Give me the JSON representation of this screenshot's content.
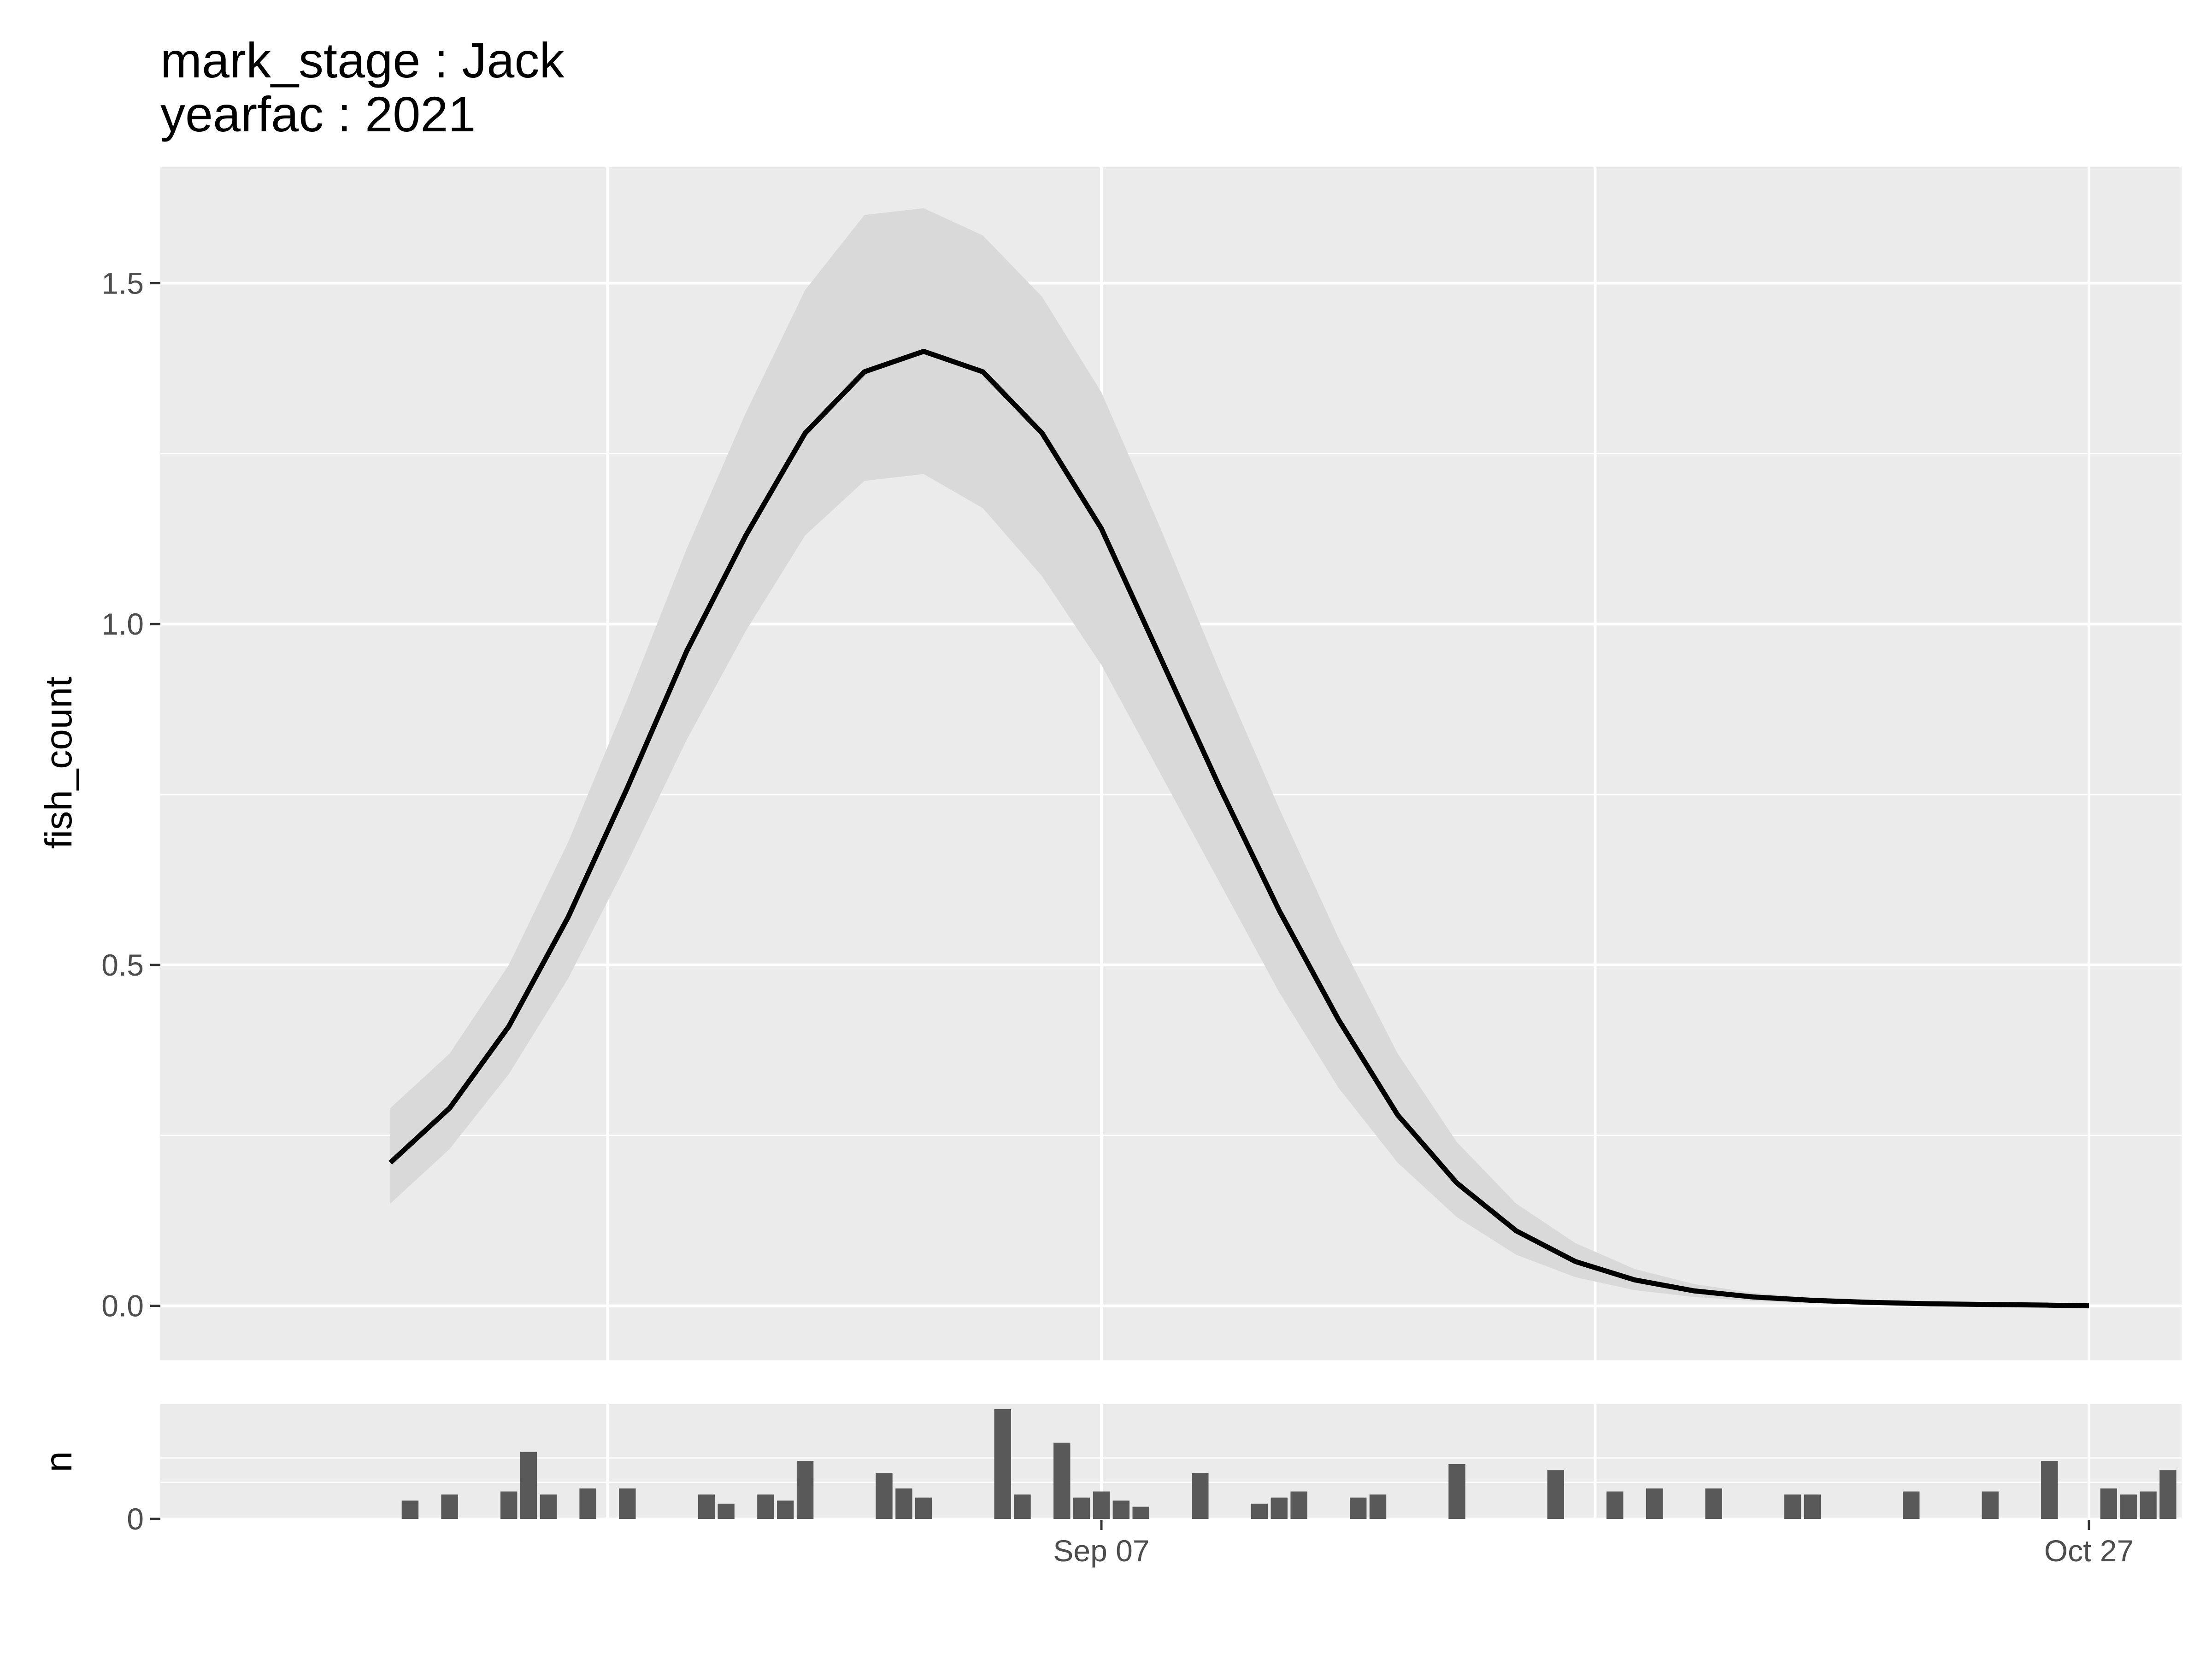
{
  "title_lines": [
    "mark_stage :  Jack",
    "yearfac :  2021"
  ],
  "colors": {
    "panel_bg": "#ebebeb",
    "grid_major": "#ffffff",
    "ribbon": "#d9d9d9",
    "line": "#000000",
    "bar": "#595959",
    "tick_text": "#4d4d4d"
  },
  "chart_data": [
    {
      "type": "line",
      "ylabel": "fish_count",
      "xlabel": "",
      "x_start": "2021-08-02",
      "x_end": "2021-10-27",
      "x_ticks": [
        "Sep 07",
        "Oct 27"
      ],
      "y_ticks": [
        "0.0",
        "0.5",
        "1.0",
        "1.5"
      ],
      "ylim": [
        -0.08,
        1.67
      ],
      "grid": true,
      "series": [
        {
          "x": [
            "2021-08-02",
            "2021-08-05",
            "2021-08-08",
            "2021-08-11",
            "2021-08-14",
            "2021-08-17",
            "2021-08-20",
            "2021-08-23",
            "2021-08-26",
            "2021-08-29",
            "2021-09-01",
            "2021-09-04",
            "2021-09-07",
            "2021-09-10",
            "2021-09-13",
            "2021-09-16",
            "2021-09-19",
            "2021-09-22",
            "2021-09-25",
            "2021-09-28",
            "2021-10-01",
            "2021-10-04",
            "2021-10-07",
            "2021-10-10",
            "2021-10-13",
            "2021-10-16",
            "2021-10-19",
            "2021-10-22",
            "2021-10-25",
            "2021-10-27"
          ],
          "y": [
            0.21,
            0.29,
            0.41,
            0.57,
            0.76,
            0.96,
            1.13,
            1.28,
            1.37,
            1.4,
            1.37,
            1.28,
            1.14,
            0.95,
            0.76,
            0.58,
            0.42,
            0.28,
            0.18,
            0.11,
            0.065,
            0.038,
            0.022,
            0.013,
            0.008,
            0.005,
            0.003,
            0.002,
            0.001,
            0.0
          ],
          "lower": [
            0.15,
            0.23,
            0.34,
            0.48,
            0.65,
            0.83,
            0.99,
            1.13,
            1.21,
            1.22,
            1.17,
            1.07,
            0.94,
            0.78,
            0.62,
            0.46,
            0.32,
            0.21,
            0.13,
            0.075,
            0.042,
            0.023,
            0.013,
            0.007,
            0.004,
            0.003,
            0.002,
            0.001,
            0.0005,
            0.0
          ],
          "upper": [
            0.29,
            0.37,
            0.5,
            0.68,
            0.89,
            1.11,
            1.31,
            1.49,
            1.6,
            1.61,
            1.57,
            1.48,
            1.34,
            1.14,
            0.93,
            0.73,
            0.54,
            0.37,
            0.24,
            0.15,
            0.092,
            0.054,
            0.032,
            0.019,
            0.012,
            0.008,
            0.005,
            0.003,
            0.002,
            0.001
          ]
        }
      ]
    },
    {
      "type": "bar",
      "ylabel": "n",
      "xlabel": "",
      "y_ticks": [
        "0"
      ],
      "ylim": [
        0,
        3.6
      ],
      "grid": true,
      "x": [
        "2021-08-03",
        "2021-08-05",
        "2021-08-08",
        "2021-08-09",
        "2021-08-10",
        "2021-08-12",
        "2021-08-14",
        "2021-08-18",
        "2021-08-19",
        "2021-08-21",
        "2021-08-22",
        "2021-08-23",
        "2021-08-27",
        "2021-08-28",
        "2021-08-29",
        "2021-09-02",
        "2021-09-03",
        "2021-09-05",
        "2021-09-06",
        "2021-09-07",
        "2021-09-08",
        "2021-09-09",
        "2021-09-12",
        "2021-09-15",
        "2021-09-16",
        "2021-09-17",
        "2021-09-20",
        "2021-09-21",
        "2021-09-25",
        "2021-09-30",
        "2021-10-03",
        "2021-10-05",
        "2021-10-08",
        "2021-10-12",
        "2021-10-13",
        "2021-10-18",
        "2021-10-22",
        "2021-10-25",
        "2021-10-28",
        "2021-10-29",
        "2021-10-30",
        "2021-10-31"
      ],
      "values": [
        0.6,
        0.8,
        0.9,
        2.2,
        0.8,
        1.0,
        1.0,
        0.8,
        0.5,
        0.8,
        0.6,
        1.9,
        1.5,
        1.0,
        0.7,
        3.6,
        0.8,
        2.5,
        0.7,
        0.9,
        0.6,
        0.4,
        1.5,
        0.5,
        0.7,
        0.9,
        0.7,
        0.8,
        1.8,
        1.6,
        0.9,
        1.0,
        1.0,
        0.8,
        0.8,
        0.9,
        0.9,
        1.9,
        1.0,
        0.8,
        0.9,
        1.6
      ]
    }
  ]
}
